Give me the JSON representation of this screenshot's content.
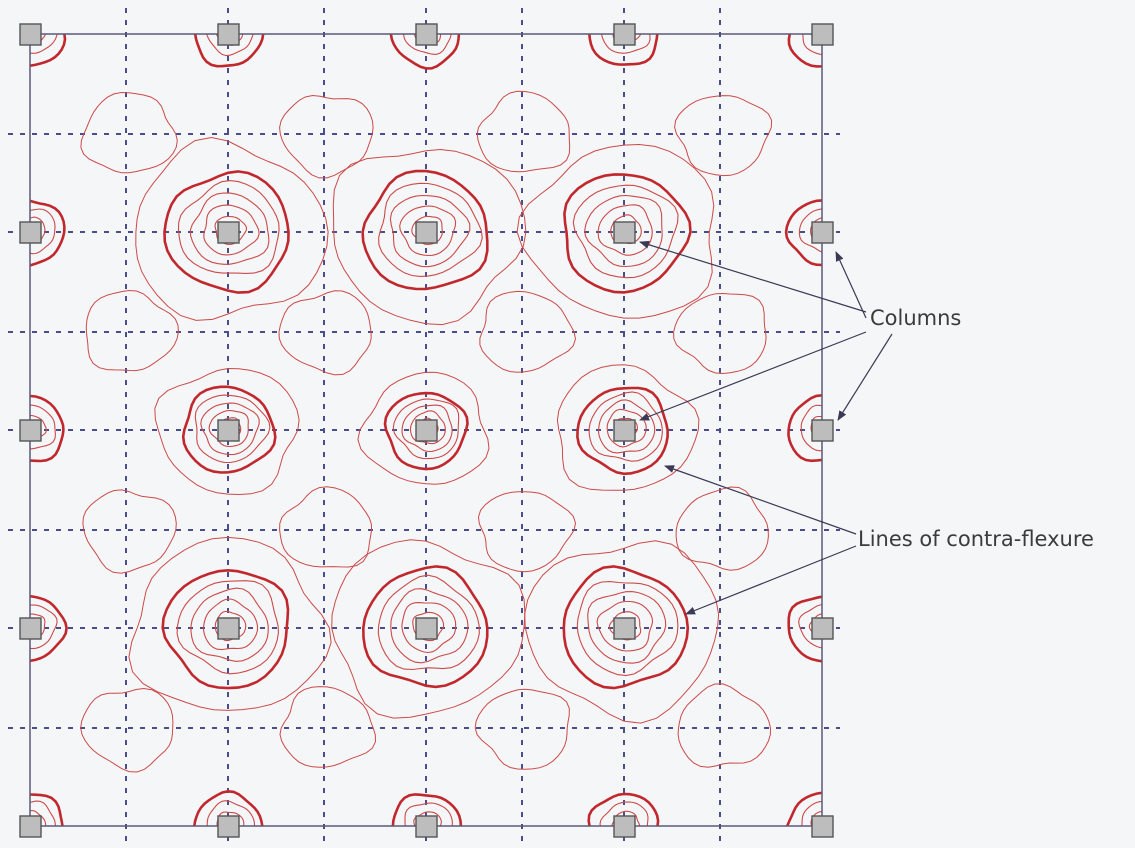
{
  "labels": {
    "columns": "Columns",
    "contra_flexure": "Lines of contra-flexure"
  },
  "grid": {
    "columns_x": 5,
    "rows_y": 5
  },
  "colors": {
    "background": "#f4f6f7",
    "slab_edge": "#5a5a78",
    "gridline": "#4a4d8a",
    "contour": "#cc4a4a",
    "contra_flexure": "#c0282d",
    "column_fill": "#bdbdbd",
    "column_stroke": "#555555",
    "leader": "#3a3a55"
  }
}
